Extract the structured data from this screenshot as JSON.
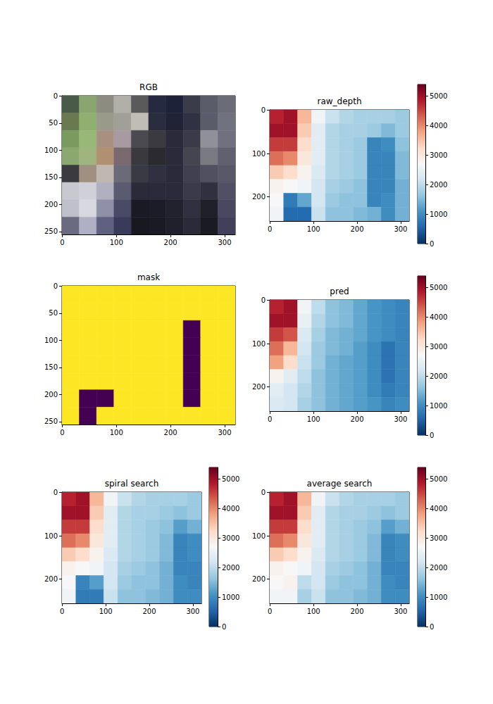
{
  "chart_data": [
    {
      "type": "image",
      "title": "RGB",
      "xlim": [
        -0.5,
        319.5
      ],
      "ylim": [
        255.5,
        -0.5
      ],
      "xticks": [
        0,
        100,
        200,
        300
      ],
      "yticks": [
        0,
        50,
        100,
        150,
        200,
        250
      ],
      "colors": [
        [
          "#4a5a48",
          "#8aa66e",
          "#8c8c80",
          "#b0b0a8",
          "#5a5a5a",
          "#262a40",
          "#1e2238",
          "#3a3c4a",
          "#5a5c6a",
          "#6a6c78"
        ],
        [
          "#6a7a50",
          "#90b070",
          "#9a9a8a",
          "#a0a098",
          "#c0beb4",
          "#2a2c40",
          "#202236",
          "#303244",
          "#5a5c6a",
          "#707280"
        ],
        [
          "#7a9a60",
          "#98b878",
          "#a89080",
          "#a89aa0",
          "#4a4a50",
          "#3a3a40",
          "#2a2a3a",
          "#3a3a48",
          "#909098",
          "#707080"
        ],
        [
          "#8aa870",
          "#a0b480",
          "#b09070",
          "#7a6a70",
          "#3a3a3e",
          "#2a2a30",
          "#2a2a3a",
          "#454550",
          "#7a7a82",
          "#606070"
        ],
        [
          "#3a3a40",
          "#a09080",
          "#c0b8b0",
          "#6a6a78",
          "#3a3a44",
          "#303040",
          "#2a2a3a",
          "#404050",
          "#505060",
          "#585868"
        ],
        [
          "#c8c8d0",
          "#d0d0d8",
          "#b0b0c0",
          "#5a5a70",
          "#2a2a38",
          "#2a2a3a",
          "#2a2a3a",
          "#3a3a48",
          "#303040",
          "#505064"
        ],
        [
          "#c0c0cc",
          "#d8d8e0",
          "#9090a8",
          "#4a4a66",
          "#1a1a24",
          "#1c1c28",
          "#22222e",
          "#303040",
          "#202028",
          "#484860"
        ],
        [
          "#6a6a80",
          "#b0b0c4",
          "#606080",
          "#3a3a5a",
          "#181820",
          "#1a1a24",
          "#20202c",
          "#2a2a38",
          "#1a1a22",
          "#40405a"
        ]
      ]
    },
    {
      "type": "heatmap",
      "title": "raw_depth",
      "xlim": [
        -0.5,
        319.5
      ],
      "ylim": [
        255.5,
        -0.5
      ],
      "xticks": [
        0,
        100,
        200,
        300
      ],
      "yticks": [
        0,
        100,
        200
      ],
      "colorbar": {
        "range": [
          0,
          5400
        ],
        "ticks": [
          0,
          1000,
          2000,
          3000,
          4000,
          5000
        ]
      },
      "cells": [
        [
          4800,
          5000,
          3600,
          2600,
          2100,
          1900,
          1800,
          1800,
          1800,
          1700
        ],
        [
          5000,
          5000,
          3400,
          2400,
          1900,
          1800,
          1800,
          1700,
          1500,
          1700
        ],
        [
          4600,
          4600,
          3200,
          2400,
          1900,
          1800,
          1700,
          900,
          1000,
          1600
        ],
        [
          4200,
          4000,
          3000,
          2400,
          1900,
          1800,
          1700,
          900,
          900,
          1500
        ],
        [
          3400,
          3200,
          2800,
          2300,
          1900,
          1800,
          1700,
          900,
          900,
          1500
        ],
        [
          2800,
          2700,
          2600,
          2200,
          1800,
          1700,
          1600,
          900,
          900,
          1400
        ],
        [
          2700,
          800,
          1300,
          2200,
          1700,
          1600,
          1600,
          900,
          1000,
          1400
        ],
        [
          2600,
          600,
          600,
          2100,
          1600,
          1600,
          1500,
          1400,
          1000,
          1400
        ]
      ]
    },
    {
      "type": "heatmap",
      "title": "mask",
      "xlim": [
        -0.5,
        319.5
      ],
      "ylim": [
        255.5,
        -0.5
      ],
      "xticks": [
        0,
        100,
        200,
        300
      ],
      "yticks": [
        0,
        50,
        100,
        150,
        200,
        250
      ],
      "cells": [
        [
          1,
          1,
          1,
          1,
          1,
          1,
          1,
          1,
          1,
          1
        ],
        [
          1,
          1,
          1,
          1,
          1,
          1,
          1,
          1,
          1,
          1
        ],
        [
          1,
          1,
          1,
          1,
          1,
          1,
          1,
          0,
          1,
          1
        ],
        [
          1,
          1,
          1,
          1,
          1,
          1,
          1,
          0,
          1,
          1
        ],
        [
          1,
          1,
          1,
          1,
          1,
          1,
          1,
          0,
          1,
          1
        ],
        [
          1,
          1,
          1,
          1,
          1,
          1,
          1,
          0,
          1,
          1
        ],
        [
          1,
          0,
          0,
          1,
          1,
          1,
          1,
          0,
          1,
          1
        ],
        [
          1,
          0,
          1,
          1,
          1,
          1,
          1,
          1,
          1,
          1
        ]
      ]
    },
    {
      "type": "heatmap",
      "title": "pred",
      "xlim": [
        -0.5,
        319.5
      ],
      "ylim": [
        255.5,
        -0.5
      ],
      "xticks": [
        0,
        100,
        200,
        300
      ],
      "yticks": [
        0,
        100,
        200
      ],
      "colorbar": {
        "range": [
          0,
          5400
        ],
        "ticks": [
          0,
          1000,
          2000,
          3000,
          4000,
          5000
        ]
      },
      "cells": [
        [
          4800,
          5000,
          2600,
          2000,
          1600,
          1500,
          1300,
          1100,
          1000,
          900
        ],
        [
          5000,
          5000,
          2500,
          1900,
          1600,
          1500,
          1300,
          1100,
          1000,
          900
        ],
        [
          4600,
          4400,
          2300,
          1800,
          1500,
          1400,
          1300,
          1100,
          1000,
          900
        ],
        [
          4200,
          3600,
          2200,
          1700,
          1500,
          1400,
          1200,
          1000,
          700,
          900
        ],
        [
          3800,
          3200,
          2100,
          1700,
          1400,
          1300,
          1200,
          1000,
          700,
          900
        ],
        [
          2800,
          2400,
          2000,
          1600,
          1400,
          1300,
          1200,
          1000,
          700,
          900
        ],
        [
          2400,
          2200,
          1900,
          1600,
          1400,
          1300,
          1200,
          1000,
          800,
          900
        ],
        [
          2300,
          2200,
          1800,
          1600,
          1400,
          1300,
          1200,
          1100,
          900,
          1000
        ]
      ]
    },
    {
      "type": "heatmap",
      "title": "spiral search",
      "xlim": [
        -0.5,
        319.5
      ],
      "ylim": [
        255.5,
        -0.5
      ],
      "xticks": [
        0,
        100,
        200,
        300
      ],
      "yticks": [
        0,
        100,
        200
      ],
      "colorbar": {
        "range": [
          0,
          5400
        ],
        "ticks": [
          0,
          1000,
          2000,
          3000,
          4000,
          5000
        ]
      },
      "cells": [
        [
          4800,
          5000,
          3600,
          2600,
          2100,
          1900,
          1800,
          1800,
          1800,
          1700
        ],
        [
          5000,
          5000,
          3400,
          2400,
          1900,
          1800,
          1800,
          1700,
          1600,
          1700
        ],
        [
          4600,
          4600,
          3200,
          2400,
          1900,
          1800,
          1700,
          1600,
          1200,
          1400
        ],
        [
          4200,
          4000,
          3000,
          2400,
          1900,
          1800,
          1700,
          1500,
          900,
          1000
        ],
        [
          3400,
          3200,
          2800,
          2300,
          1900,
          1800,
          1700,
          1500,
          900,
          1000
        ],
        [
          2800,
          2700,
          2600,
          2200,
          1800,
          1700,
          1600,
          1400,
          900,
          900
        ],
        [
          2700,
          900,
          1200,
          2200,
          1700,
          1600,
          1600,
          1400,
          1000,
          900
        ],
        [
          2600,
          800,
          800,
          2100,
          1600,
          1600,
          1500,
          1400,
          1000,
          1000
        ]
      ]
    },
    {
      "type": "heatmap",
      "title": "average search",
      "xlim": [
        -0.5,
        319.5
      ],
      "ylim": [
        255.5,
        -0.5
      ],
      "xticks": [
        0,
        100,
        200,
        300
      ],
      "yticks": [
        0,
        100,
        200
      ],
      "colorbar": {
        "range": [
          0,
          5400
        ],
        "ticks": [
          0,
          1000,
          2000,
          3000,
          4000,
          5000
        ]
      },
      "cells": [
        [
          4800,
          5000,
          3600,
          2600,
          2100,
          1900,
          1800,
          1800,
          1800,
          1700
        ],
        [
          5000,
          5000,
          3400,
          2400,
          1900,
          1800,
          1800,
          1700,
          1600,
          1700
        ],
        [
          4600,
          4600,
          3200,
          2400,
          1900,
          1800,
          1700,
          1600,
          1200,
          1400
        ],
        [
          4200,
          4000,
          3000,
          2400,
          1900,
          1800,
          1700,
          1500,
          900,
          1000
        ],
        [
          3400,
          3200,
          2800,
          2300,
          1900,
          1800,
          1700,
          1500,
          900,
          1000
        ],
        [
          2800,
          2700,
          2600,
          2200,
          1800,
          1700,
          1600,
          1400,
          900,
          900
        ],
        [
          2700,
          2800,
          2000,
          2200,
          1700,
          1600,
          1600,
          1400,
          1000,
          900
        ],
        [
          2600,
          2600,
          1800,
          2100,
          1600,
          1600,
          1500,
          1400,
          1000,
          1000
        ]
      ]
    }
  ]
}
